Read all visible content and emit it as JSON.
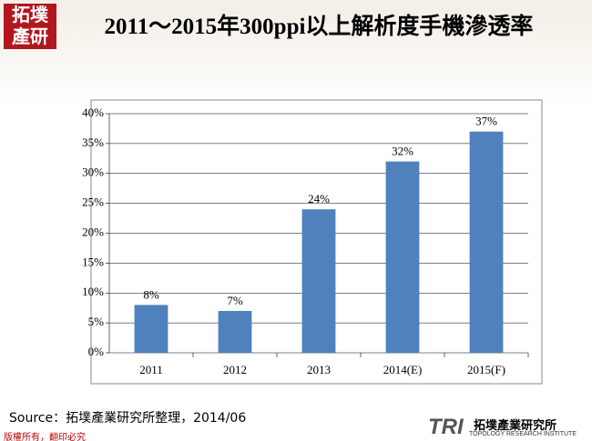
{
  "header": {
    "logo": "拓墣產研"
  },
  "chart_data": {
    "type": "bar",
    "title": "2011～2015年300ppi以上解析度手機滲透率",
    "categories": [
      "2011",
      "2012",
      "2013",
      "2014(E)",
      "2015(F)"
    ],
    "values": [
      8,
      7,
      24,
      32,
      37
    ],
    "value_labels": [
      "8%",
      "7%",
      "24%",
      "32%",
      "37%"
    ],
    "color": "#4f81bd",
    "ylim": [
      0,
      40
    ],
    "yticks": [
      {
        "value": 0,
        "label": "0%"
      },
      {
        "value": 5,
        "label": "5%"
      },
      {
        "value": 10,
        "label": "10%"
      },
      {
        "value": 15,
        "label": "15%"
      },
      {
        "value": 20,
        "label": "20%"
      },
      {
        "value": 25,
        "label": "25%"
      },
      {
        "value": 30,
        "label": "30%"
      },
      {
        "value": 35,
        "label": "35%"
      },
      {
        "value": 40,
        "label": "40%"
      }
    ],
    "grid": true
  },
  "footer": {
    "source": "Source：拓墣產業研究所整理，2014/06",
    "copyright": "版權所有，翻印必究",
    "brand": "TRI",
    "brand_name": "拓墣產業研究所",
    "brand_en": "TOPOLOGY RESEARCH INSTITUTE"
  }
}
